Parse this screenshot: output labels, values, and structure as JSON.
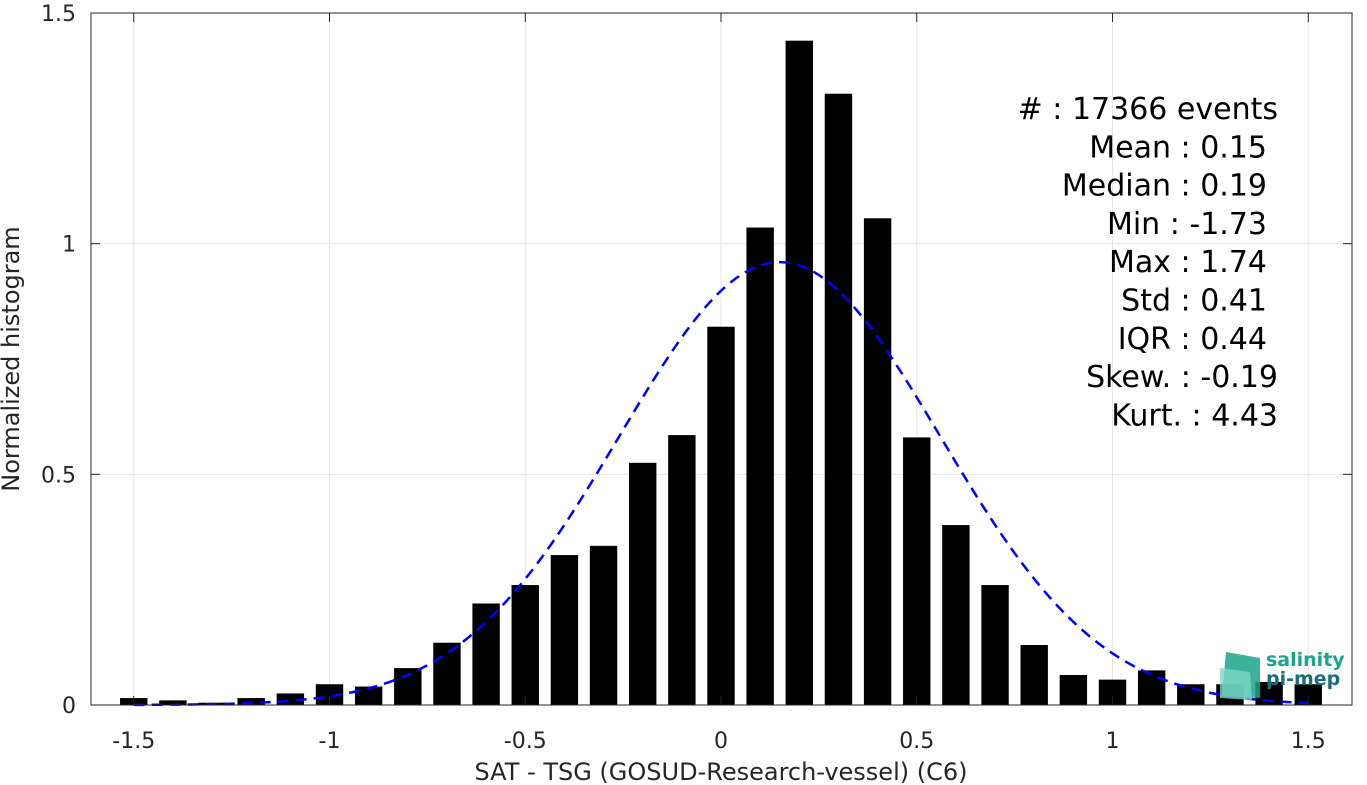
{
  "chart_data": {
    "type": "bar",
    "title": "",
    "xlabel": "SAT - TSG (GOSUD-Research-vessel) (C6)",
    "ylabel": "Normalized histogram",
    "xlim": [
      -1.6,
      1.6
    ],
    "ylim": [
      0,
      1.5
    ],
    "x_ticks": [
      -1.5,
      -1,
      -0.5,
      0,
      0.5,
      1,
      1.5
    ],
    "x_tick_labels": [
      "-1.5",
      "-1",
      "-0.5",
      "0",
      "0.5",
      "1",
      "1.5"
    ],
    "y_ticks": [
      0,
      0.5,
      1,
      1.5
    ],
    "y_tick_labels": [
      "0",
      "0.5",
      "1",
      "1.5"
    ],
    "grid": true,
    "bar_width": 0.07,
    "x": [
      -1.5,
      -1.4,
      -1.3,
      -1.2,
      -1.1,
      -1.0,
      -0.9,
      -0.8,
      -0.7,
      -0.6,
      -0.5,
      -0.4,
      -0.3,
      -0.2,
      -0.1,
      0.0,
      0.1,
      0.2,
      0.3,
      0.4,
      0.5,
      0.6,
      0.7,
      0.8,
      0.9,
      1.0,
      1.1,
      1.2,
      1.3,
      1.4,
      1.5
    ],
    "values": [
      0.015,
      0.01,
      0.005,
      0.015,
      0.025,
      0.045,
      0.04,
      0.08,
      0.135,
      0.22,
      0.26,
      0.325,
      0.345,
      0.525,
      0.585,
      0.82,
      1.035,
      1.44,
      1.325,
      1.055,
      0.58,
      0.39,
      0.26,
      0.13,
      0.065,
      0.055,
      0.075,
      0.045,
      0.045,
      0.05,
      0.045
    ],
    "bar_color": "#000000",
    "fit_curve": {
      "type": "gaussian",
      "mean": 0.15,
      "std": 0.41,
      "peak": 0.96,
      "color": "#0000ff",
      "style": "dashed"
    },
    "stats": [
      {
        "label": "#  :",
        "value": "17366 events"
      },
      {
        "label": "Mean :",
        "value": "0.15"
      },
      {
        "label": "Median :",
        "value": "0.19"
      },
      {
        "label": "Min :",
        "value": "-1.73"
      },
      {
        "label": "Max :",
        "value": "1.74"
      },
      {
        "label": "Std :",
        "value": "0.41"
      },
      {
        "label": "IQR :",
        "value": "0.44"
      },
      {
        "label": "Skew. :",
        "value": "-0.19"
      },
      {
        "label": "Kurt. :",
        "value": "4.43"
      }
    ]
  },
  "logo": {
    "line1": "salinity",
    "line2": "pi-mep",
    "color": "#1aa58c"
  }
}
